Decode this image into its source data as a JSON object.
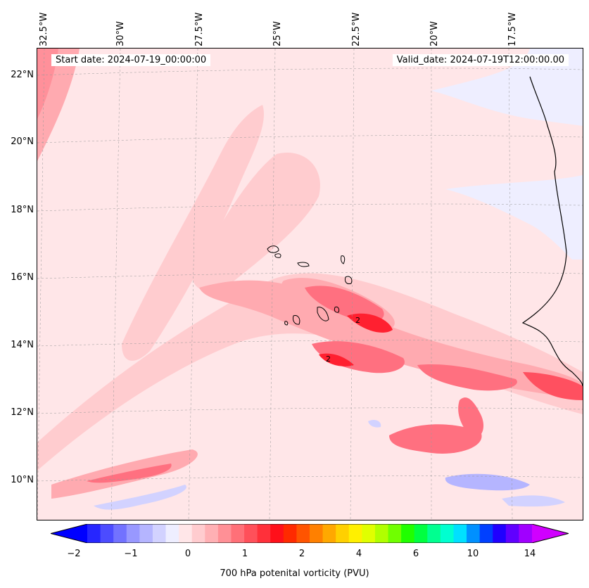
{
  "header": {
    "start_date": "Start date: 2024-07-19_00:00:00",
    "valid_date": "Valid_date: 2024-07-19T12:00:00.00"
  },
  "longitude_labels": [
    "32.5°W",
    "30°W",
    "27.5°W",
    "25°W",
    "22.5°W",
    "20°W",
    "17.5°W"
  ],
  "latitude_labels": [
    "22°N",
    "20°N",
    "18°N",
    "16°N",
    "14°N",
    "12°N",
    "10°N"
  ],
  "colorbar": {
    "label": "700 hPa potenital vorticity (PVU)",
    "ticks": [
      "−2",
      "−1",
      "0",
      "1",
      "2",
      "4",
      "6",
      "10",
      "14"
    ],
    "colors": [
      "#0000ff",
      "#2626ff",
      "#4c4cff",
      "#7272ff",
      "#9898ff",
      "#b5b5ff",
      "#d2d2ff",
      "#eeeeff",
      "#ffe6e8",
      "#ffcccf",
      "#ffb0b4",
      "#ff9096",
      "#ff7078",
      "#ff505a",
      "#ff303a",
      "#ff101a",
      "#ff2a00",
      "#ff5400",
      "#ff8000",
      "#ffa800",
      "#ffd000",
      "#fff000",
      "#e0ff00",
      "#b0ff00",
      "#70ff00",
      "#20ff00",
      "#00ff40",
      "#00ff90",
      "#00ffd0",
      "#00e0ff",
      "#0090ff",
      "#0040ff",
      "#2000ff",
      "#6000ff",
      "#a000ff",
      "#d000ff"
    ]
  },
  "contour_labels": [
    "2",
    "2"
  ],
  "colors": {
    "background": "#ffe6e8",
    "light_pink": "#ffcccf",
    "medium_pink": "#ffaab0",
    "red": "#ff6070",
    "deep_red": "#ff2030",
    "light_blue": "#eeeeff",
    "blue": "#b5b5ff"
  }
}
